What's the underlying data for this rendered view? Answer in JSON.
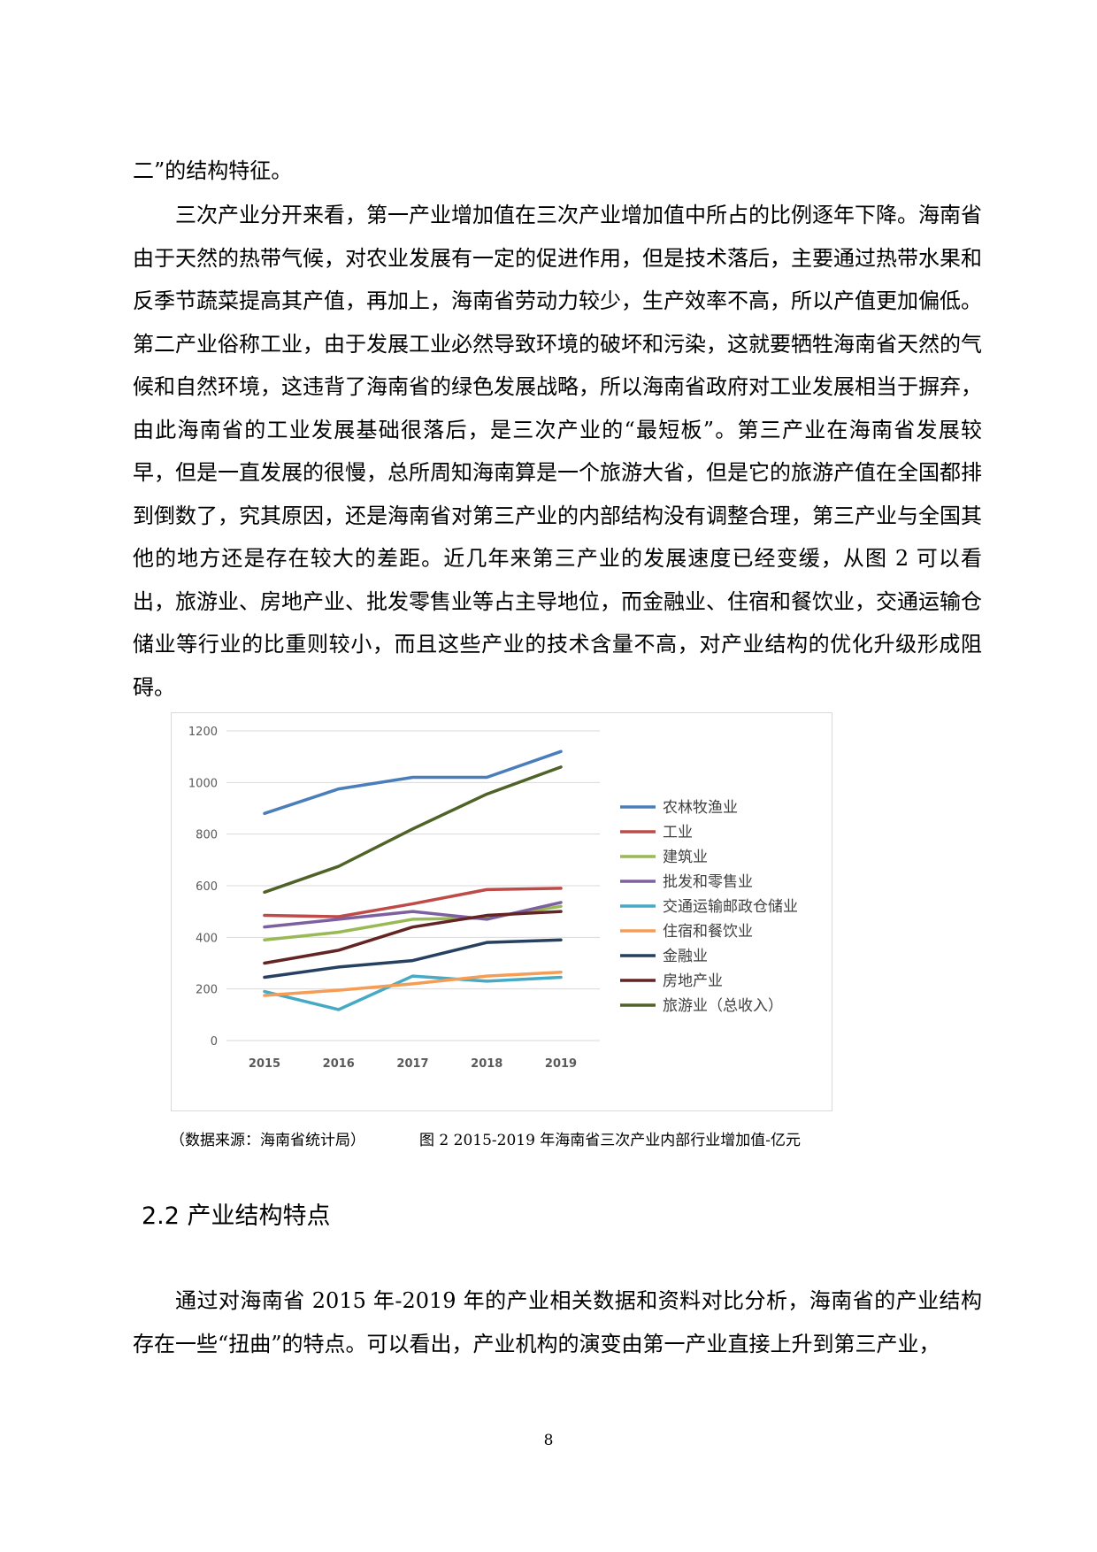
{
  "paragraphs": {
    "p0": "二”的结构特征。",
    "p1": "三次产业分开来看，第一产业增加值在三次产业增加值中所占的比例逐年下降。海南省由于天然的热带气候，对农业发展有一定的促进作用，但是技术落后，主要通过热带水果和反季节蔬菜提高其产值，再加上，海南省劳动力较少，生产效率不高，所以产值更加偏低。第二产业俗称工业，由于发展工业必然导致环境的破坏和污染，这就要牺牲海南省天然的气候和自然环境，这违背了海南省的绿色发展战略，所以海南省政府对工业发展相当于摒弃，由此海南省的工业发展基础很落后，是三次产业的“最短板”。第三产业在海南省发展较早，但是一直发展的很慢，总所周知海南算是一个旅游大省，但是它的旅游产值在全国都排到倒数了，究其原因，还是海南省对第三产业的内部结构没有调整合理，第三产业与全国其他的地方还是存在较大的差距。近几年来第三产业的发展速度已经变缓，从图 2 可以看出，旅游业、房地产业、批发零售业等占主导地位，而金融业、住宿和餐饮业，交通运输仓储业等行业的比重则较小，而且这些产业的技术含量不高，对产业结构的优化升级形成阻碍。",
    "p2": "通过对海南省 2015 年-2019 年的产业相关数据和资料对比分析，海南省的产业结构存在一些“扭曲”的特点。可以看出，产业机构的演变由第一产业直接上升到第三产业，"
  },
  "caption": {
    "source": "（数据来源：海南省统计局）",
    "figure": "图 2 2015-2019 年海南省三次产业内部行业增加值-亿元"
  },
  "section": {
    "heading": "2.2 产业结构特点"
  },
  "page_number": "8",
  "chart_data": {
    "type": "line",
    "categories": [
      "2015",
      "2016",
      "2017",
      "2018",
      "2019"
    ],
    "ylim": [
      0,
      1200
    ],
    "yticks": [
      0,
      200,
      400,
      600,
      800,
      1000,
      1200
    ],
    "grid": true,
    "legend": "right",
    "series": [
      {
        "name": "农林牧渔业",
        "color": "#4a7ebb",
        "values": [
          880,
          975,
          1020,
          1020,
          1120
        ]
      },
      {
        "name": "工业",
        "color": "#be4b48",
        "values": [
          485,
          480,
          530,
          585,
          590
        ]
      },
      {
        "name": "建筑业",
        "color": "#98b954",
        "values": [
          390,
          420,
          470,
          475,
          520
        ]
      },
      {
        "name": "批发和零售业",
        "color": "#7d60a0",
        "values": [
          440,
          470,
          500,
          470,
          535
        ]
      },
      {
        "name": "交通运输邮政仓储业",
        "color": "#46aac5",
        "values": [
          190,
          120,
          250,
          230,
          245
        ]
      },
      {
        "name": "住宿和餐饮业",
        "color": "#f59d56",
        "values": [
          175,
          195,
          220,
          250,
          265
        ]
      },
      {
        "name": "金融业",
        "color": "#254061",
        "values": [
          245,
          285,
          310,
          380,
          390
        ]
      },
      {
        "name": "房地产业",
        "color": "#632423",
        "values": [
          300,
          350,
          440,
          485,
          500
        ]
      },
      {
        "name": "旅游业（总收入）",
        "color": "#4f6228",
        "values": [
          575,
          675,
          820,
          955,
          1060
        ]
      }
    ]
  }
}
